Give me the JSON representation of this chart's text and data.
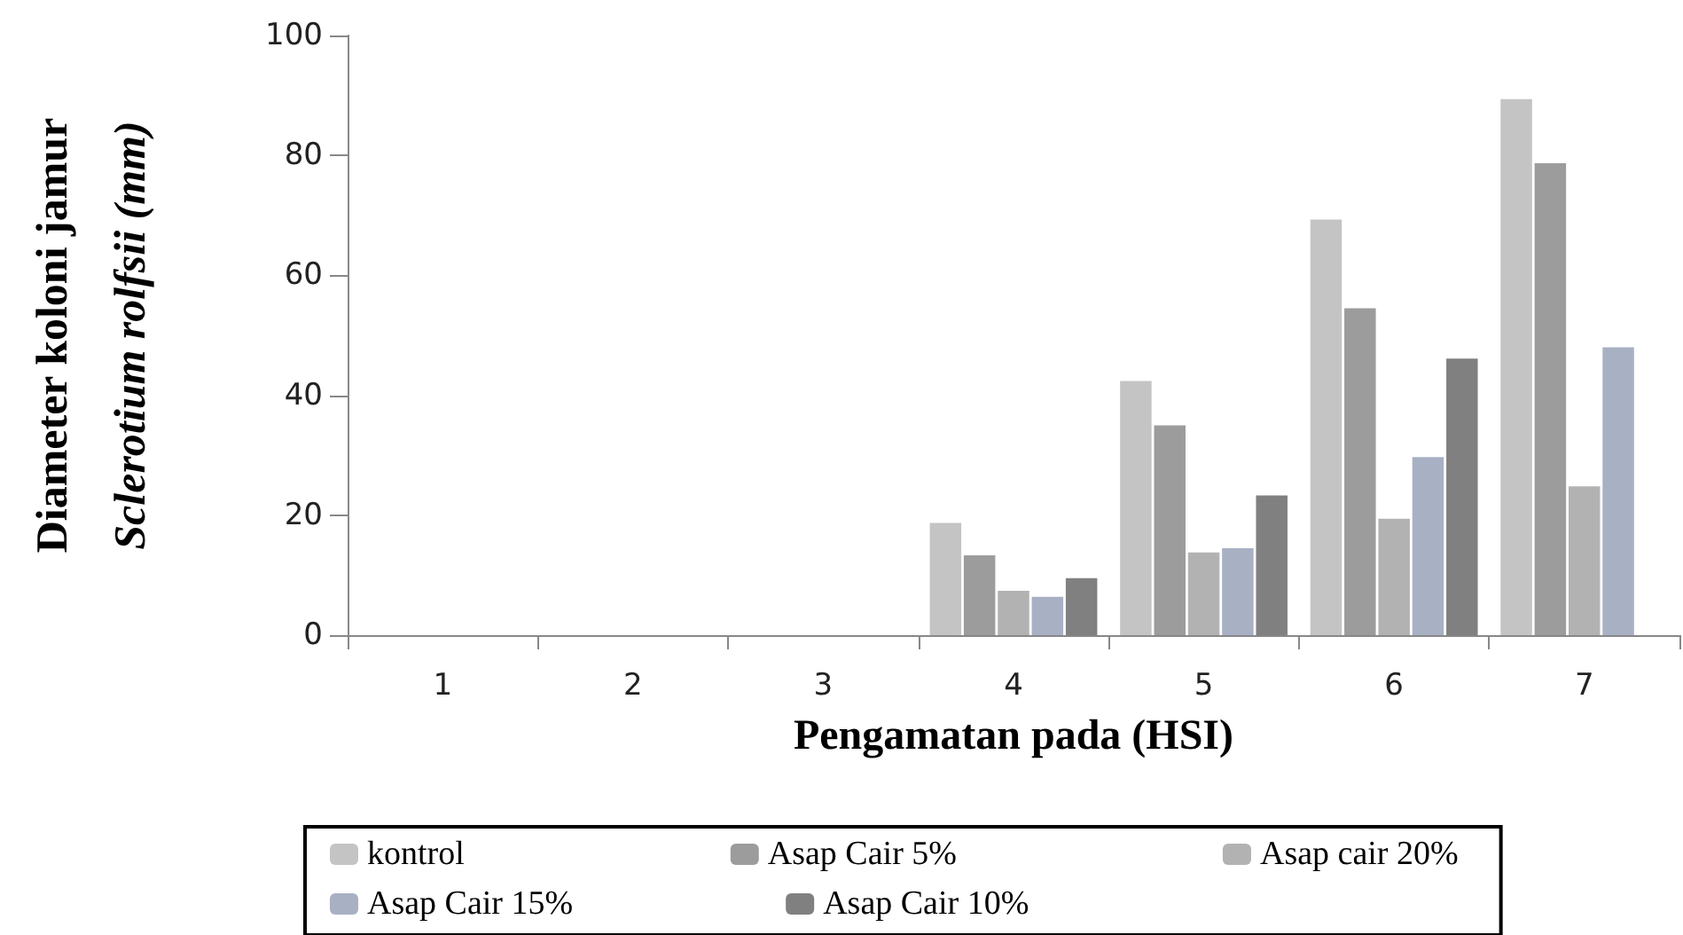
{
  "chart_data": {
    "type": "bar",
    "xlabel": "Pengamatan pada (HSI)",
    "ylabel": "Diameter koloni jamur\nSclerotium rolfsii (mm)",
    "categories": [
      "1",
      "2",
      "3",
      "4",
      "5",
      "6",
      "7"
    ],
    "series": [
      {
        "name": "kontrol",
        "color": "#c4c4c4",
        "values": [
          0,
          0,
          0,
          18.7,
          42.4,
          69.3,
          89.4
        ]
      },
      {
        "name": "Asap Cair 5%",
        "color": "#9c9c9c",
        "values": [
          0,
          0,
          0,
          13.3,
          35.0,
          54.5,
          78.7
        ]
      },
      {
        "name": "Asap cair 20%",
        "color": "#b2b2b2",
        "values": [
          0,
          0,
          0,
          7.4,
          13.8,
          19.4,
          24.8
        ]
      },
      {
        "name": "Asap Cair 15%",
        "color": "#a8b0c4",
        "values": [
          0,
          0,
          0,
          6.4,
          14.5,
          29.7,
          48.0
        ]
      },
      {
        "name": "Asap Cair 10%",
        "color": "#808080",
        "values": [
          0,
          0,
          0,
          9.5,
          23.3,
          46.1,
          null
        ]
      }
    ],
    "ylim": [
      0,
      100
    ],
    "yticks": [
      0,
      20,
      40,
      60,
      80,
      100
    ],
    "grid": false,
    "legend": "bottom"
  }
}
